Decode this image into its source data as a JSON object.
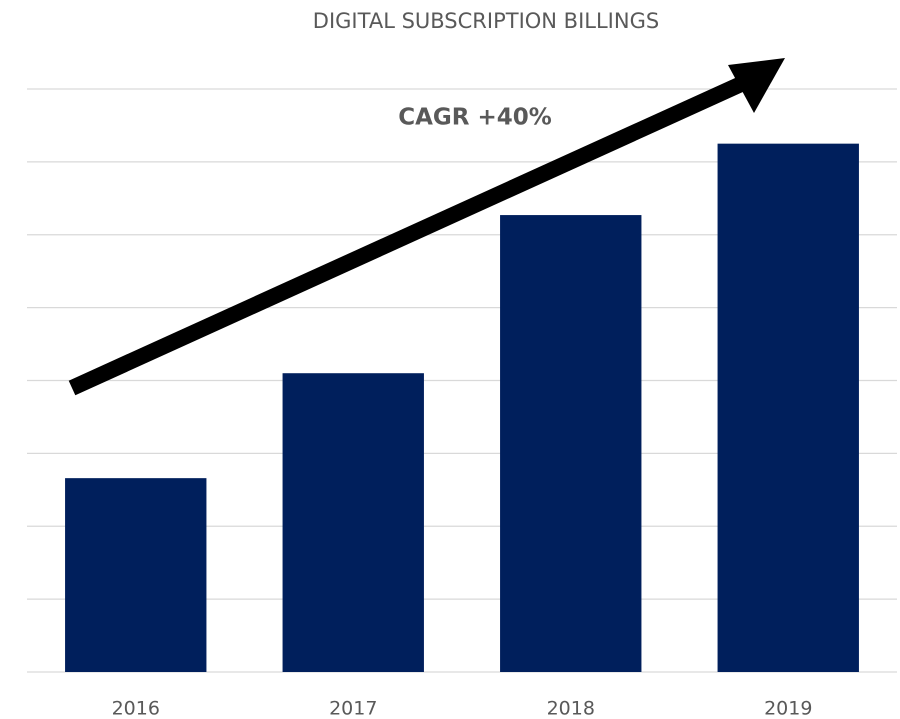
{
  "chart_data": {
    "type": "bar",
    "title": "DIGITAL SUBSCRIPTION BILLINGS",
    "annotation": "CAGR +40%",
    "categories": [
      "2016",
      "2017",
      "2018",
      "2019"
    ],
    "values": [
      2.66,
      4.1,
      6.27,
      7.25
    ],
    "color": "#001f5c",
    "ylim": [
      0,
      8
    ],
    "yticks": [
      0,
      1,
      2,
      3,
      4,
      5,
      6,
      7,
      8
    ],
    "grid": true
  }
}
